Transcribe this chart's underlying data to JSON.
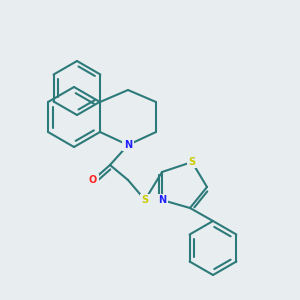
{
  "background_color": "#e8edf0",
  "bond_color": "#2d7a7a",
  "n_color": "#2020ff",
  "o_color": "#ff2020",
  "s_color": "#cccc00",
  "line_width": 1.5,
  "atoms": {
    "N": {
      "color": "#2020ff"
    },
    "O": {
      "color": "#ff2020"
    },
    "S": {
      "color": "#cccc00"
    },
    "C": {
      "color": "#2d7a7a"
    }
  }
}
